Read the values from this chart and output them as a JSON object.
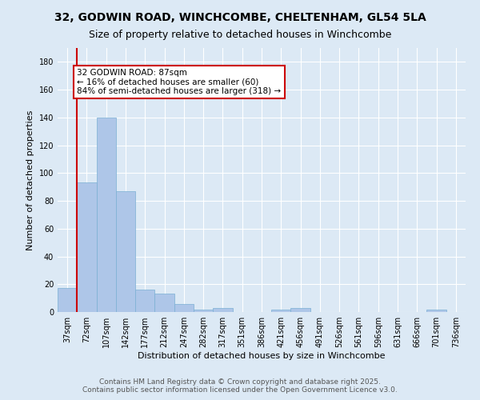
{
  "title_line1": "32, GODWIN ROAD, WINCHCOMBE, CHELTENHAM, GL54 5LA",
  "title_line2": "Size of property relative to detached houses in Winchcombe",
  "xlabel": "Distribution of detached houses by size in Winchcombe",
  "ylabel": "Number of detached properties",
  "bins": [
    "37sqm",
    "72sqm",
    "107sqm",
    "142sqm",
    "177sqm",
    "212sqm",
    "247sqm",
    "282sqm",
    "317sqm",
    "351sqm",
    "386sqm",
    "421sqm",
    "456sqm",
    "491sqm",
    "526sqm",
    "561sqm",
    "596sqm",
    "631sqm",
    "666sqm",
    "701sqm",
    "736sqm"
  ],
  "values": [
    17,
    93,
    140,
    87,
    16,
    13,
    6,
    2,
    3,
    0,
    0,
    2,
    3,
    0,
    0,
    0,
    0,
    0,
    0,
    2,
    0
  ],
  "bar_color": "#aec6e8",
  "bar_edge_color": "#7aafd4",
  "highlight_color": "#cc0000",
  "annotation_text": "32 GODWIN ROAD: 87sqm\n← 16% of detached houses are smaller (60)\n84% of semi-detached houses are larger (318) →",
  "annotation_box_color": "#ffffff",
  "annotation_box_edge": "#cc0000",
  "ylim": [
    0,
    190
  ],
  "yticks": [
    0,
    20,
    40,
    60,
    80,
    100,
    120,
    140,
    160,
    180
  ],
  "background_color": "#dce9f5",
  "plot_bg_color": "#dce9f5",
  "grid_color": "#ffffff",
  "footer_line1": "Contains HM Land Registry data © Crown copyright and database right 2025.",
  "footer_line2": "Contains public sector information licensed under the Open Government Licence v3.0.",
  "title_fontsize": 10,
  "subtitle_fontsize": 9,
  "axis_label_fontsize": 8,
  "tick_fontsize": 7,
  "annotation_fontsize": 7.5,
  "footer_fontsize": 6.5
}
